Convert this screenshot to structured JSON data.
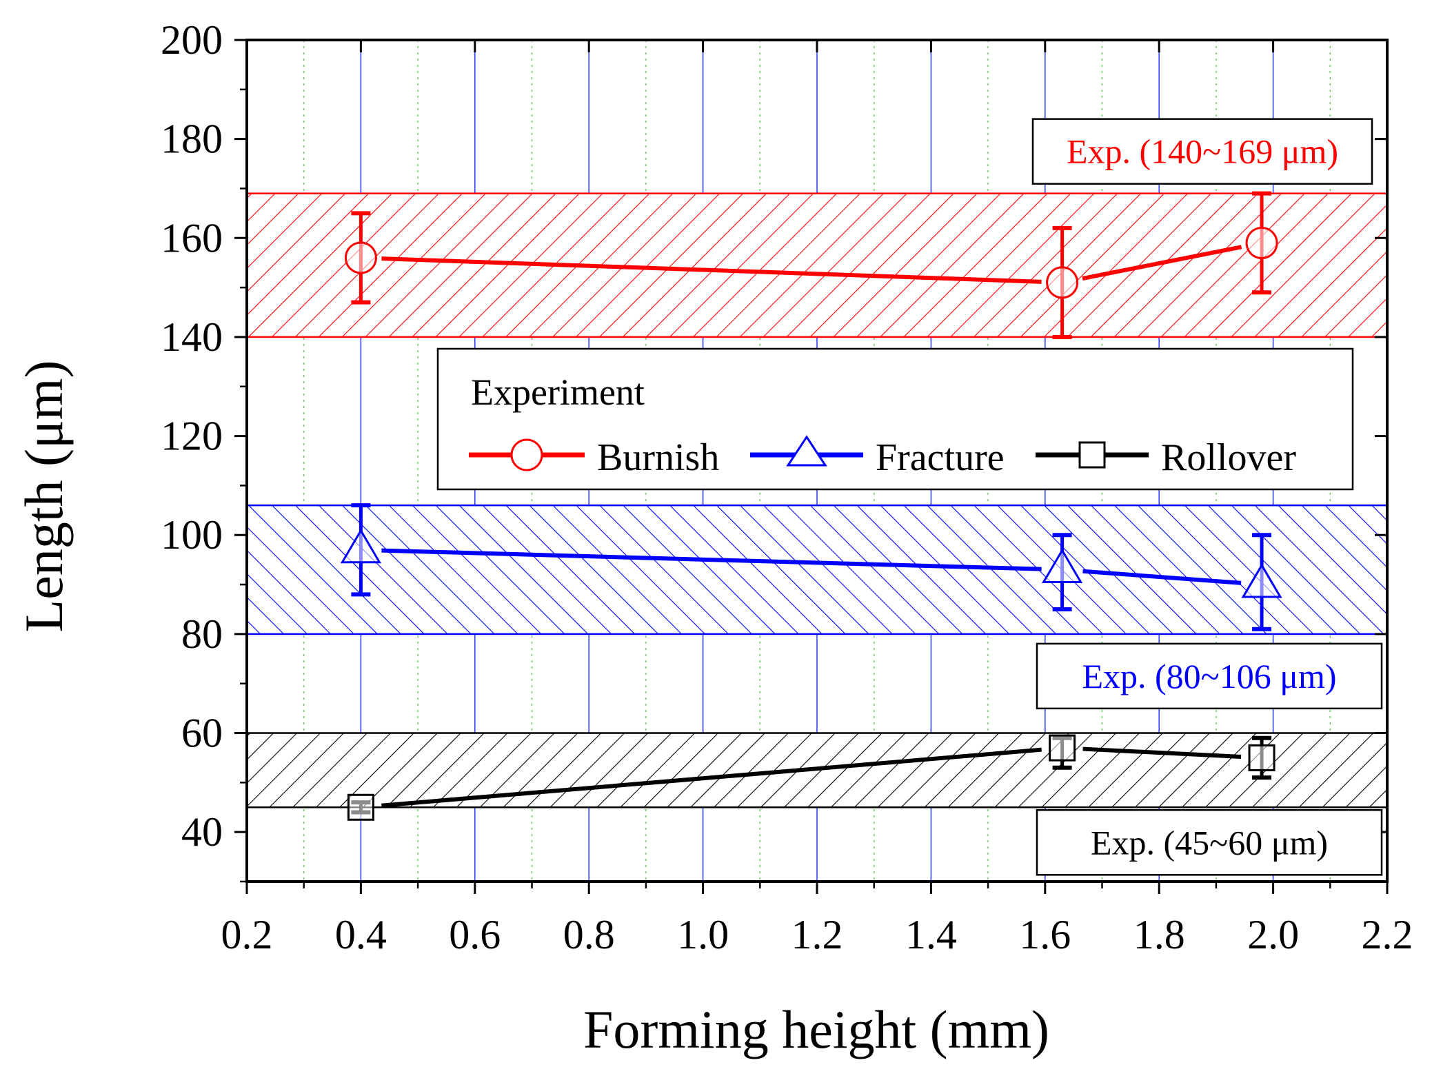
{
  "chart_data": {
    "type": "line",
    "xlabel": "Forming height (mm)",
    "ylabel": "Length (μm)",
    "xlim": [
      0.2,
      2.2
    ],
    "ylim": [
      30,
      200
    ],
    "xticks": [
      0.2,
      0.4,
      0.6,
      0.8,
      1.0,
      1.2,
      1.4,
      1.6,
      1.8,
      2.0,
      2.2
    ],
    "xtick_labels": [
      "0.2",
      "0.4",
      "0.6",
      "0.8",
      "1.0",
      "1.2",
      "1.4",
      "1.6",
      "1.8",
      "2.0",
      "2.2"
    ],
    "yticks": [
      40,
      60,
      80,
      100,
      120,
      140,
      160,
      180,
      200
    ],
    "ytick_labels": [
      "40",
      "60",
      "80",
      "100",
      "120",
      "140",
      "160",
      "180",
      "200"
    ],
    "grid": true,
    "legend": {
      "title": "Experiment",
      "placement": "center-right"
    },
    "series": [
      {
        "name": "Burnish",
        "color": "#ff0000",
        "marker": "circle",
        "x": [
          0.4,
          1.63,
          1.98
        ],
        "y": [
          156,
          151,
          159
        ],
        "err_low": [
          147,
          140,
          149
        ],
        "err_high": [
          165,
          162,
          169
        ]
      },
      {
        "name": "Fracture",
        "color": "#0000ff",
        "marker": "triangle",
        "x": [
          0.4,
          1.63,
          1.98
        ],
        "y": [
          97,
          93,
          90
        ],
        "err_low": [
          88,
          85,
          81
        ],
        "err_high": [
          106,
          100,
          100
        ]
      },
      {
        "name": "Rollover",
        "color": "#000000",
        "marker": "square",
        "x": [
          0.4,
          1.63,
          1.98
        ],
        "y": [
          45,
          57,
          55
        ],
        "err_low": [
          44,
          53,
          51
        ],
        "err_high": [
          46,
          59,
          59
        ]
      }
    ],
    "bands": [
      {
        "series": "Burnish",
        "color": "#ff0000",
        "y_min": 140,
        "y_max": 169,
        "label": "Exp. (140~169 μm)",
        "label_placement": "above-right"
      },
      {
        "series": "Fracture",
        "color": "#0000ff",
        "y_min": 80,
        "y_max": 106,
        "label": "Exp. (80~106 μm)",
        "label_placement": "below-right"
      },
      {
        "series": "Rollover",
        "color": "#000000",
        "y_min": 45,
        "y_max": 60,
        "label": "Exp. (45~60 μm)",
        "label_placement": "below-right"
      }
    ]
  }
}
